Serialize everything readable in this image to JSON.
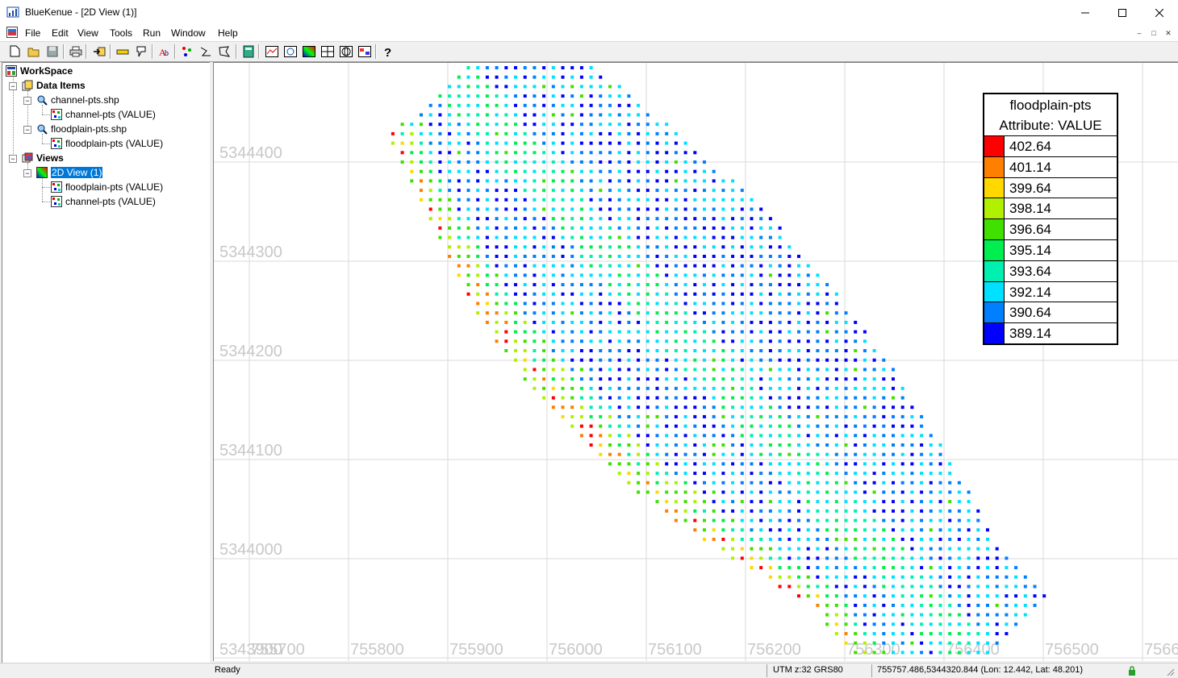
{
  "window": {
    "title": "BlueKenue - [2D View (1)]"
  },
  "menu": [
    "File",
    "Edit",
    "View",
    "Tools",
    "Run",
    "Window",
    "Help"
  ],
  "toolbar_icons": [
    "new-file-icon",
    "open-folder-icon",
    "save-icon",
    "print-icon",
    "import-icon",
    "ruler-icon",
    "probe-icon",
    "text-tool-icon",
    "points-icon",
    "polyline-icon",
    "polygon-icon",
    "calculator-icon",
    "profile-view-icon",
    "3d-view-icon",
    "color-scale-icon",
    "grid-view-icon",
    "globe-view-icon",
    "table-view-icon",
    "help-icon"
  ],
  "workspace": {
    "root": "WorkSpace",
    "data_items_label": "Data Items",
    "channel_shp": "channel-pts.shp",
    "channel_child": "channel-pts (VALUE)",
    "floodplain_shp": "floodplain-pts.shp",
    "floodplain_child": "floodplain-pts (VALUE)",
    "views_label": "Views",
    "view_name": "2D View (1)",
    "view_layer1": "floodplain-pts (VALUE)",
    "view_layer2": "channel-pts (VALUE)"
  },
  "view": {
    "x_labels": [
      "755700",
      "755800",
      "755900",
      "756000",
      "756100",
      "756200",
      "756300",
      "756400",
      "756500",
      "7566"
    ],
    "y_labels": [
      "5344400",
      "5344300",
      "5344200",
      "5344100",
      "5344000",
      "5343900"
    ]
  },
  "legend": {
    "title": "floodplain-pts",
    "attribute": "Attribute: VALUE",
    "entries": [
      {
        "value": "402.64",
        "color": "#ff0000"
      },
      {
        "value": "401.14",
        "color": "#ff7f00"
      },
      {
        "value": "399.64",
        "color": "#ffd800"
      },
      {
        "value": "398.14",
        "color": "#b0f000"
      },
      {
        "value": "396.64",
        "color": "#40e000"
      },
      {
        "value": "395.14",
        "color": "#00ee50"
      },
      {
        "value": "393.64",
        "color": "#00f0b0"
      },
      {
        "value": "392.14",
        "color": "#00e0ff"
      },
      {
        "value": "390.64",
        "color": "#0080ff"
      },
      {
        "value": "389.14",
        "color": "#0000ff"
      }
    ]
  },
  "status": {
    "ready": "Ready",
    "projection": "UTM z:32 GRS80",
    "coords": "755757.486,5344320.844 (Lon: 12.442, Lat: 48.201)"
  }
}
